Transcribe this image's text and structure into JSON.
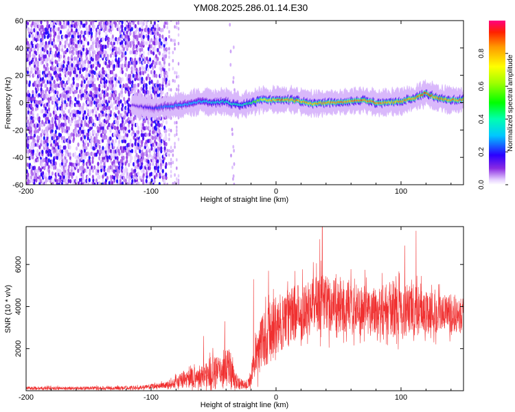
{
  "title": "YM08.2025.286.01.14.E30",
  "chart_data": [
    {
      "type": "heatmap",
      "name": "spectrogram",
      "xlabel": "Height of straight line (km)",
      "ylabel": "Frequency (Hz)",
      "xlim": [
        -200,
        150
      ],
      "ylim": [
        -60,
        60
      ],
      "xticks": [
        -200,
        -100,
        0,
        100
      ],
      "yticks": [
        60,
        40,
        20,
        0,
        -20,
        -40,
        -60
      ],
      "tick_labels_x": [
        "-200",
        "-100",
        "0",
        "100"
      ],
      "tick_labels_y": [
        "60",
        "40",
        "20",
        "0",
        "-20",
        "-40",
        "-60"
      ],
      "noise_region_km": [
        -200,
        -87
      ],
      "faint_tail_km": [
        -87,
        -78
      ],
      "isolated_streak_km": -35,
      "ridge": [
        {
          "x": -115,
          "y": -2,
          "amp": 0.12
        },
        {
          "x": -97,
          "y": -4,
          "amp": 0.22
        },
        {
          "x": -90,
          "y": -3,
          "amp": 0.28
        },
        {
          "x": -80,
          "y": -2,
          "amp": 0.3
        },
        {
          "x": -70,
          "y": -1,
          "amp": 0.32
        },
        {
          "x": -60,
          "y": 1,
          "amp": 0.34
        },
        {
          "x": -50,
          "y": 0,
          "amp": 0.38
        },
        {
          "x": -42,
          "y": 1,
          "amp": 0.4
        },
        {
          "x": -35,
          "y": -1,
          "amp": 0.42
        },
        {
          "x": -28,
          "y": -2,
          "amp": 0.4
        },
        {
          "x": -20,
          "y": 0,
          "amp": 0.45
        },
        {
          "x": -12,
          "y": 2,
          "amp": 0.7
        },
        {
          "x": -5,
          "y": 2,
          "amp": 0.85
        },
        {
          "x": 0,
          "y": 2,
          "amp": 0.9
        },
        {
          "x": 10,
          "y": 2,
          "amp": 0.92
        },
        {
          "x": 20,
          "y": 1,
          "amp": 0.9
        },
        {
          "x": 30,
          "y": -1,
          "amp": 0.88
        },
        {
          "x": 40,
          "y": 0,
          "amp": 0.9
        },
        {
          "x": 50,
          "y": 0,
          "amp": 0.88
        },
        {
          "x": 60,
          "y": 1,
          "amp": 0.9
        },
        {
          "x": 70,
          "y": 2,
          "amp": 0.92
        },
        {
          "x": 80,
          "y": 0,
          "amp": 0.9
        },
        {
          "x": 90,
          "y": 0,
          "amp": 0.88
        },
        {
          "x": 100,
          "y": 1,
          "amp": 0.9
        },
        {
          "x": 110,
          "y": 3,
          "amp": 0.92
        },
        {
          "x": 120,
          "y": 7,
          "amp": 0.95
        },
        {
          "x": 130,
          "y": 3,
          "amp": 0.92
        },
        {
          "x": 140,
          "y": 2,
          "amp": 0.9
        },
        {
          "x": 150,
          "y": 2,
          "amp": 0.9
        }
      ],
      "colorbar": {
        "label": "Normalized spectral amplitude",
        "range": [
          0,
          1
        ],
        "ticks": [
          0.0,
          0.2,
          0.4,
          0.6,
          0.8
        ],
        "tick_labels": [
          "0.0",
          "0.2",
          "0.4",
          "0.6",
          "0.8"
        ]
      }
    },
    {
      "type": "line",
      "name": "snr",
      "xlabel": "Height of straight line (km)",
      "ylabel": "SNR (10 * v/v)",
      "xlim": [
        -200,
        150
      ],
      "ylim": [
        0,
        7800
      ],
      "xticks": [
        -200,
        -100,
        0,
        100
      ],
      "yticks": [
        2000,
        4000,
        6000
      ],
      "tick_labels_x": [
        "-200",
        "-100",
        "0",
        "100"
      ],
      "tick_labels_y": [
        "2000",
        "4000",
        "6000"
      ],
      "color": "#f03030",
      "envelope": [
        {
          "x": -200,
          "mean": 120,
          "spread": 100
        },
        {
          "x": -150,
          "mean": 120,
          "spread": 100
        },
        {
          "x": -110,
          "mean": 140,
          "spread": 110
        },
        {
          "x": -85,
          "mean": 300,
          "spread": 200
        },
        {
          "x": -75,
          "mean": 500,
          "spread": 500
        },
        {
          "x": -60,
          "mean": 700,
          "spread": 700
        },
        {
          "x": -52,
          "mean": 800,
          "spread": 1100
        },
        {
          "x": -45,
          "mean": 900,
          "spread": 900
        },
        {
          "x": -38,
          "mean": 1300,
          "spread": 1400
        },
        {
          "x": -33,
          "mean": 500,
          "spread": 500
        },
        {
          "x": -25,
          "mean": 250,
          "spread": 200
        },
        {
          "x": -20,
          "mean": 500,
          "spread": 400
        },
        {
          "x": -18,
          "mean": 1500,
          "spread": 1200
        },
        {
          "x": -12,
          "mean": 2200,
          "spread": 1600
        },
        {
          "x": -5,
          "mean": 2800,
          "spread": 1800
        },
        {
          "x": 5,
          "mean": 3300,
          "spread": 1700
        },
        {
          "x": 15,
          "mean": 3700,
          "spread": 1700
        },
        {
          "x": 25,
          "mean": 4000,
          "spread": 1600
        },
        {
          "x": 35,
          "mean": 4300,
          "spread": 1800
        },
        {
          "x": 50,
          "mean": 4000,
          "spread": 1600
        },
        {
          "x": 70,
          "mean": 3800,
          "spread": 1500
        },
        {
          "x": 90,
          "mean": 3900,
          "spread": 1600
        },
        {
          "x": 110,
          "mean": 3800,
          "spread": 1500
        },
        {
          "x": 130,
          "mean": 3700,
          "spread": 1200
        },
        {
          "x": 150,
          "mean": 3600,
          "spread": 1000
        }
      ],
      "peaks": [
        {
          "x": 37,
          "y": 7800
        },
        {
          "x": 112,
          "y": 7600
        },
        {
          "x": 35,
          "y": 7200
        },
        {
          "x": 103,
          "y": 6900
        },
        {
          "x": -6,
          "y": 5700
        },
        {
          "x": -18,
          "y": 5300
        },
        {
          "x": -41,
          "y": 3300
        },
        {
          "x": -58,
          "y": 2600
        }
      ]
    }
  ]
}
